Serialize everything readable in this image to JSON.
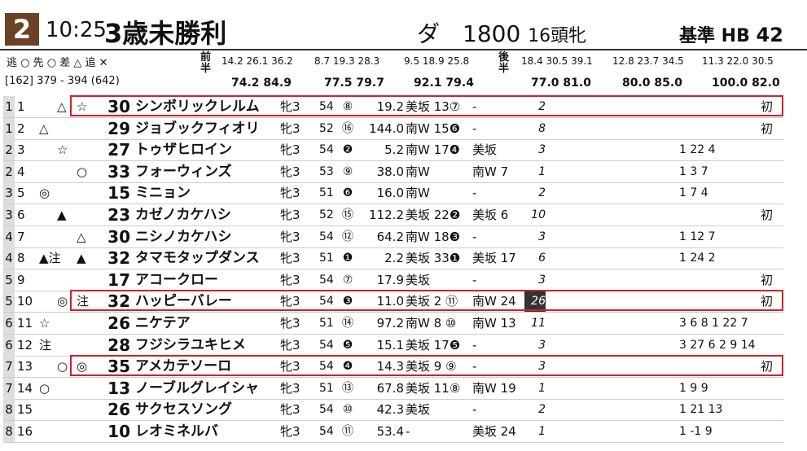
{
  "header": {
    "race_no": "2",
    "time": "10:25",
    "race_name": "3歳未勝利",
    "course": "ダ　1800",
    "field": "16頭牝",
    "standard_label": "基準 HB",
    "standard_value": "42"
  },
  "legend": {
    "style_marks": "逃 ○ 先 ○ 差 △ 追 ✕",
    "first_half_label": "前半",
    "second_half_label": "後半",
    "ref": "[162]  379 - 394  (642)"
  },
  "laps": {
    "g1": [
      "14.2",
      "26.1",
      "36.2"
    ],
    "g1b": [
      "74.2",
      "84.9"
    ],
    "g2": [
      "8.7",
      "19.3",
      "28.3"
    ],
    "g2b": [
      "77.5",
      "79.7"
    ],
    "g3": [
      "9.5",
      "18.9",
      "25.8"
    ],
    "g3b": [
      "92.1",
      "79.4"
    ],
    "g4": [
      "18.4",
      "30.5",
      "39.1"
    ],
    "g4b": [
      "77.0",
      "81.0"
    ],
    "g5": [
      "12.8",
      "23.7",
      "34.5"
    ],
    "g5b": [
      "80.0",
      "85.0"
    ],
    "g6": [
      "11.3",
      "22.0",
      "30.5"
    ],
    "g6b": [
      "100.0",
      "82.0"
    ]
  },
  "rows": [
    {
      "frame": "1",
      "no": "1",
      "m1": "",
      "m2": "△",
      "m3": "☆",
      "score": "30",
      "name": "シンボリックレルム",
      "sex": "牝3",
      "wt": "54",
      "pop": "⑧",
      "odds": "19.2",
      "t1": "美坂 13⑦",
      "t2": "-",
      "rank": "2",
      "res": "",
      "note": "初"
    },
    {
      "frame": "1",
      "no": "2",
      "m1": "△",
      "m2": "",
      "m3": "",
      "score": "29",
      "name": "ジョブックフィオリ",
      "sex": "牝3",
      "wt": "52",
      "pop": "⑯",
      "odds": "144.0",
      "t1": "南W 15❻",
      "t2": "-",
      "rank": "8",
      "res": "",
      "note": "初"
    },
    {
      "frame": "2",
      "no": "3",
      "m1": "",
      "m2": "☆",
      "m3": "",
      "score": "27",
      "name": "トゥザヒロイン",
      "sex": "牝3",
      "wt": "54",
      "pop": "❷",
      "odds": "5.2",
      "t1": "南W 17❹",
      "t2": "美坂",
      "rank": "3",
      "res": "1 22 4",
      "note": ""
    },
    {
      "frame": "2",
      "no": "4",
      "m1": "",
      "m2": "",
      "m3": "○",
      "score": "33",
      "name": "フォーウィンズ",
      "sex": "牝3",
      "wt": "53",
      "pop": "⑨",
      "odds": "38.0",
      "t1": "南W",
      "t2": "南W 7",
      "rank": "1",
      "res": "1  3 7",
      "note": ""
    },
    {
      "frame": "3",
      "no": "5",
      "m1": "◎",
      "m2": "",
      "m3": "",
      "score": "15",
      "name": "ミニョン",
      "sex": "牝3",
      "wt": "51",
      "pop": "❻",
      "odds": "16.0",
      "t1": "南W",
      "t2": "-",
      "rank": "2",
      "res": "1  7  4",
      "note": ""
    },
    {
      "frame": "3",
      "no": "6",
      "m1": "",
      "m2": "▲",
      "m3": "",
      "score": "23",
      "name": "カゼノカケハシ",
      "sex": "牝3",
      "wt": "52",
      "pop": "⑮",
      "odds": "112.2",
      "t1": "美坂 22❷",
      "t2": "美坂 6",
      "rank": "10",
      "res": "",
      "note": "初"
    },
    {
      "frame": "4",
      "no": "7",
      "m1": "",
      "m2": "",
      "m3": "△",
      "score": "30",
      "name": "ニシノカケハシ",
      "sex": "牝3",
      "wt": "54",
      "pop": "⑫",
      "odds": "64.2",
      "t1": "南W 18❸",
      "t2": "-",
      "rank": "3",
      "res": "1 12 7",
      "note": ""
    },
    {
      "frame": "4",
      "no": "8",
      "m1": "▲注",
      "m2": "",
      "m3": "▲",
      "score": "32",
      "name": "タマモタップダンス",
      "sex": "牝3",
      "wt": "51",
      "pop": "❶",
      "odds": "2.2",
      "t1": "美坂 33❶",
      "t2": "美坂 17",
      "rank": "6",
      "res": "1 24 2",
      "note": ""
    },
    {
      "frame": "5",
      "no": "9",
      "m1": "",
      "m2": "",
      "m3": "",
      "score": "17",
      "name": "アコークロー",
      "sex": "牝3",
      "wt": "54",
      "pop": "⑦",
      "odds": "17.9",
      "t1": "美坂",
      "t2": "-",
      "rank": "3",
      "res": "",
      "note": "初"
    },
    {
      "frame": "5",
      "no": "10",
      "m1": "",
      "m2": "◎",
      "m3": "注",
      "score": "32",
      "name": "ハッピーバレー",
      "sex": "牝3",
      "wt": "54",
      "pop": "❸",
      "odds": "11.0",
      "t1": "美坂 2 ⑪",
      "t2": "南W 24",
      "rank": "26",
      "res": "",
      "note": "初"
    },
    {
      "frame": "6",
      "no": "11",
      "m1": "☆",
      "m2": "",
      "m3": "",
      "score": "26",
      "name": "ニケテア",
      "sex": "牝3",
      "wt": "51",
      "pop": "⑭",
      "odds": "97.2",
      "t1": "南W 8 ⑩",
      "t2": "南W 13",
      "rank": "11",
      "res": "3 6 8 1 22 7",
      "note": ""
    },
    {
      "frame": "6",
      "no": "12",
      "m1": "注",
      "m2": "",
      "m3": "",
      "score": "28",
      "name": "フジシラユキヒメ",
      "sex": "牝3",
      "wt": "54",
      "pop": "❺",
      "odds": "15.1",
      "t1": "美坂 17❺",
      "t2": "-",
      "rank": "3",
      "res": "3 27 6 2 9 14",
      "note": ""
    },
    {
      "frame": "7",
      "no": "13",
      "m1": "",
      "m2": "○",
      "m3": "◎",
      "score": "35",
      "name": "アメカテソーロ",
      "sex": "牝3",
      "wt": "54",
      "pop": "❹",
      "odds": "14.3",
      "t1": "美坂 9 ⑨",
      "t2": "-",
      "rank": "3",
      "res": "",
      "note": "初"
    },
    {
      "frame": "7",
      "no": "14",
      "m1": "○",
      "m2": "",
      "m3": "",
      "score": "13",
      "name": "ノーブルグレイシャ",
      "sex": "牝3",
      "wt": "51",
      "pop": "⑬",
      "odds": "67.8",
      "t1": "美坂 11⑧",
      "t2": "南W 19",
      "rank": "1",
      "res": "1  9 9",
      "note": ""
    },
    {
      "frame": "8",
      "no": "15",
      "m1": "",
      "m2": "",
      "m3": "",
      "score": "26",
      "name": "サクセスソング",
      "sex": "牝3",
      "wt": "54",
      "pop": "⑩",
      "odds": "42.3",
      "t1": "美坂",
      "t2": "-",
      "rank": "2",
      "res": "1 21 13",
      "note": ""
    },
    {
      "frame": "8",
      "no": "16",
      "m1": "",
      "m2": "",
      "m3": "",
      "score": "10",
      "name": "レオミネルバ",
      "sex": "牝3",
      "wt": "54",
      "pop": "⑪",
      "odds": "53.4",
      "t1": "-",
      "t2": "美坂 24",
      "rank": "1",
      "res": "1 -1 9",
      "note": ""
    }
  ]
}
